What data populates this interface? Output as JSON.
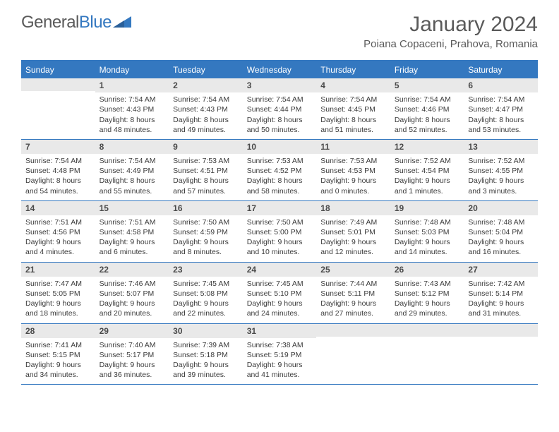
{
  "logo": {
    "text1": "General",
    "text2": "Blue"
  },
  "title": "January 2024",
  "location": "Poiana Copaceni, Prahova, Romania",
  "colors": {
    "header_bg": "#3478c0",
    "header_text": "#ffffff",
    "daynum_bg": "#e9e9e9",
    "text": "#3b3b3b",
    "rule": "#3478c0"
  },
  "weekdays": [
    "Sunday",
    "Monday",
    "Tuesday",
    "Wednesday",
    "Thursday",
    "Friday",
    "Saturday"
  ],
  "weeks": [
    [
      null,
      {
        "n": "1",
        "sr": "7:54 AM",
        "ss": "4:43 PM",
        "dlh": "8",
        "dlm": "48"
      },
      {
        "n": "2",
        "sr": "7:54 AM",
        "ss": "4:43 PM",
        "dlh": "8",
        "dlm": "49"
      },
      {
        "n": "3",
        "sr": "7:54 AM",
        "ss": "4:44 PM",
        "dlh": "8",
        "dlm": "50"
      },
      {
        "n": "4",
        "sr": "7:54 AM",
        "ss": "4:45 PM",
        "dlh": "8",
        "dlm": "51"
      },
      {
        "n": "5",
        "sr": "7:54 AM",
        "ss": "4:46 PM",
        "dlh": "8",
        "dlm": "52"
      },
      {
        "n": "6",
        "sr": "7:54 AM",
        "ss": "4:47 PM",
        "dlh": "8",
        "dlm": "53"
      }
    ],
    [
      {
        "n": "7",
        "sr": "7:54 AM",
        "ss": "4:48 PM",
        "dlh": "8",
        "dlm": "54"
      },
      {
        "n": "8",
        "sr": "7:54 AM",
        "ss": "4:49 PM",
        "dlh": "8",
        "dlm": "55"
      },
      {
        "n": "9",
        "sr": "7:53 AM",
        "ss": "4:51 PM",
        "dlh": "8",
        "dlm": "57"
      },
      {
        "n": "10",
        "sr": "7:53 AM",
        "ss": "4:52 PM",
        "dlh": "8",
        "dlm": "58"
      },
      {
        "n": "11",
        "sr": "7:53 AM",
        "ss": "4:53 PM",
        "dlh": "9",
        "dlm": "0"
      },
      {
        "n": "12",
        "sr": "7:52 AM",
        "ss": "4:54 PM",
        "dlh": "9",
        "dlm": "1"
      },
      {
        "n": "13",
        "sr": "7:52 AM",
        "ss": "4:55 PM",
        "dlh": "9",
        "dlm": "3"
      }
    ],
    [
      {
        "n": "14",
        "sr": "7:51 AM",
        "ss": "4:56 PM",
        "dlh": "9",
        "dlm": "4"
      },
      {
        "n": "15",
        "sr": "7:51 AM",
        "ss": "4:58 PM",
        "dlh": "9",
        "dlm": "6"
      },
      {
        "n": "16",
        "sr": "7:50 AM",
        "ss": "4:59 PM",
        "dlh": "9",
        "dlm": "8"
      },
      {
        "n": "17",
        "sr": "7:50 AM",
        "ss": "5:00 PM",
        "dlh": "9",
        "dlm": "10"
      },
      {
        "n": "18",
        "sr": "7:49 AM",
        "ss": "5:01 PM",
        "dlh": "9",
        "dlm": "12"
      },
      {
        "n": "19",
        "sr": "7:48 AM",
        "ss": "5:03 PM",
        "dlh": "9",
        "dlm": "14"
      },
      {
        "n": "20",
        "sr": "7:48 AM",
        "ss": "5:04 PM",
        "dlh": "9",
        "dlm": "16"
      }
    ],
    [
      {
        "n": "21",
        "sr": "7:47 AM",
        "ss": "5:05 PM",
        "dlh": "9",
        "dlm": "18"
      },
      {
        "n": "22",
        "sr": "7:46 AM",
        "ss": "5:07 PM",
        "dlh": "9",
        "dlm": "20"
      },
      {
        "n": "23",
        "sr": "7:45 AM",
        "ss": "5:08 PM",
        "dlh": "9",
        "dlm": "22"
      },
      {
        "n": "24",
        "sr": "7:45 AM",
        "ss": "5:10 PM",
        "dlh": "9",
        "dlm": "24"
      },
      {
        "n": "25",
        "sr": "7:44 AM",
        "ss": "5:11 PM",
        "dlh": "9",
        "dlm": "27"
      },
      {
        "n": "26",
        "sr": "7:43 AM",
        "ss": "5:12 PM",
        "dlh": "9",
        "dlm": "29"
      },
      {
        "n": "27",
        "sr": "7:42 AM",
        "ss": "5:14 PM",
        "dlh": "9",
        "dlm": "31"
      }
    ],
    [
      {
        "n": "28",
        "sr": "7:41 AM",
        "ss": "5:15 PM",
        "dlh": "9",
        "dlm": "34"
      },
      {
        "n": "29",
        "sr": "7:40 AM",
        "ss": "5:17 PM",
        "dlh": "9",
        "dlm": "36"
      },
      {
        "n": "30",
        "sr": "7:39 AM",
        "ss": "5:18 PM",
        "dlh": "9",
        "dlm": "39"
      },
      {
        "n": "31",
        "sr": "7:38 AM",
        "ss": "5:19 PM",
        "dlh": "9",
        "dlm": "41"
      },
      null,
      null,
      null
    ]
  ],
  "labels": {
    "sunrise": "Sunrise:",
    "sunset": "Sunset:",
    "daylight": "Daylight:",
    "hours": "hours",
    "and": "and",
    "minutes": "minutes."
  }
}
